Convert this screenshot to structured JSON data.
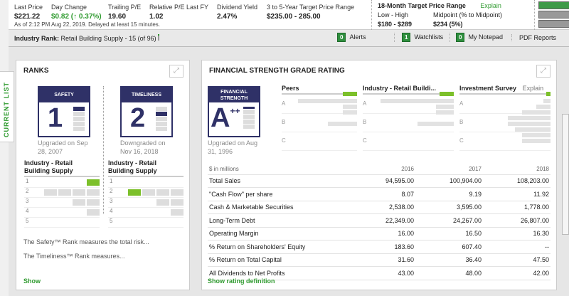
{
  "quote": {
    "last_price_label": "Last Price",
    "last_price": "$221.22",
    "day_change_label": "Day Change",
    "day_change": "$0.82 (↑ 0.37%)",
    "trailing_pe_label": "Trailing P/E",
    "trailing_pe": "19.60",
    "rel_pe_label": "Relative P/E Last FY",
    "rel_pe": "1.02",
    "div_yield_label": "Dividend Yield",
    "div_yield": "2.47%",
    "target_label": "3 to 5-Year Target Price Range",
    "target": "$235.00 - 285.00",
    "as_of": "As of 2:12 PM Aug 22, 2019. Delayed at least 15 minutes."
  },
  "target18": {
    "title": "18-Month Target Price Range",
    "explain": "Explain",
    "low_high_label": "Low - High",
    "low_high": "$180 - $289",
    "mid_label": "Midpoint (% to Midpoint)",
    "mid": "$234 (5%)"
  },
  "industry_bar": {
    "label": "Industry Rank:",
    "value": "Retail Building Supply - 15 (of 96)",
    "alerts_count": "0",
    "alerts": "Alerts",
    "watch_count": "1",
    "watchlists": "Watchlists",
    "notepad_count": "0",
    "notepad": "My Notepad",
    "pdf": "PDF Reports"
  },
  "side_tab": "CURRENT LIST",
  "ranks": {
    "title": "RANKS",
    "safety": {
      "label": "SAFETY",
      "value": "1",
      "note": "Upgraded on Sep 28, 2007",
      "industry": "Industry - Retail Building Supply",
      "rank_position": 1
    },
    "timeliness": {
      "label": "TIMELINESS",
      "value": "2",
      "note": "Downgraded on Nov 16, 2018",
      "industry": "Industry - Retail Building Supply",
      "rank_position": 2
    },
    "rank_rows": [
      "1",
      "2",
      "3",
      "4",
      "5"
    ],
    "safety_text": "The Safety™ Rank measures the total risk...",
    "timeliness_text": "The Timeliness™ Rank measures...",
    "show": "Show"
  },
  "fin": {
    "title": "FINANCIAL STRENGTH GRADE RATING",
    "card_label": "FINANCIAL STRENGTH",
    "grade": "A",
    "grade_sup": "++",
    "note": "Upgraded on Aug 31, 1996",
    "peers": "Peers",
    "industry": "Industry - Retail Buildi...",
    "survey": "Investment Survey",
    "explain": "Explain",
    "grades": [
      "A",
      "B",
      "C"
    ],
    "table": {
      "unit": "$ in millions",
      "years": [
        "2016",
        "2017",
        "2018"
      ],
      "rows": [
        [
          "Total Sales",
          "94,595.00",
          "100,904.00",
          "108,203.00"
        ],
        [
          "\"Cash Flow\" per share",
          "8.07",
          "9.19",
          "11.92"
        ],
        [
          "Cash & Marketable Securities",
          "2,538.00",
          "3,595.00",
          "1,778.00"
        ],
        [
          "Long-Term Debt",
          "22,349.00",
          "24,267.00",
          "26,807.00"
        ],
        [
          "Operating Margin",
          "16.00",
          "16.50",
          "16.30"
        ],
        [
          "% Return on Shareholders' Equity",
          "183.60",
          "607.40",
          "--"
        ],
        [
          "% Return on Total Capital",
          "31.60",
          "36.40",
          "47.50"
        ],
        [
          "All Dividends to Net Profits",
          "43.00",
          "48.00",
          "42.00"
        ]
      ]
    },
    "show_def": "Show rating definition"
  },
  "colors": {
    "green": "#2e9a2e",
    "navy": "#2f3167",
    "bar_green": "#7cc02a"
  }
}
